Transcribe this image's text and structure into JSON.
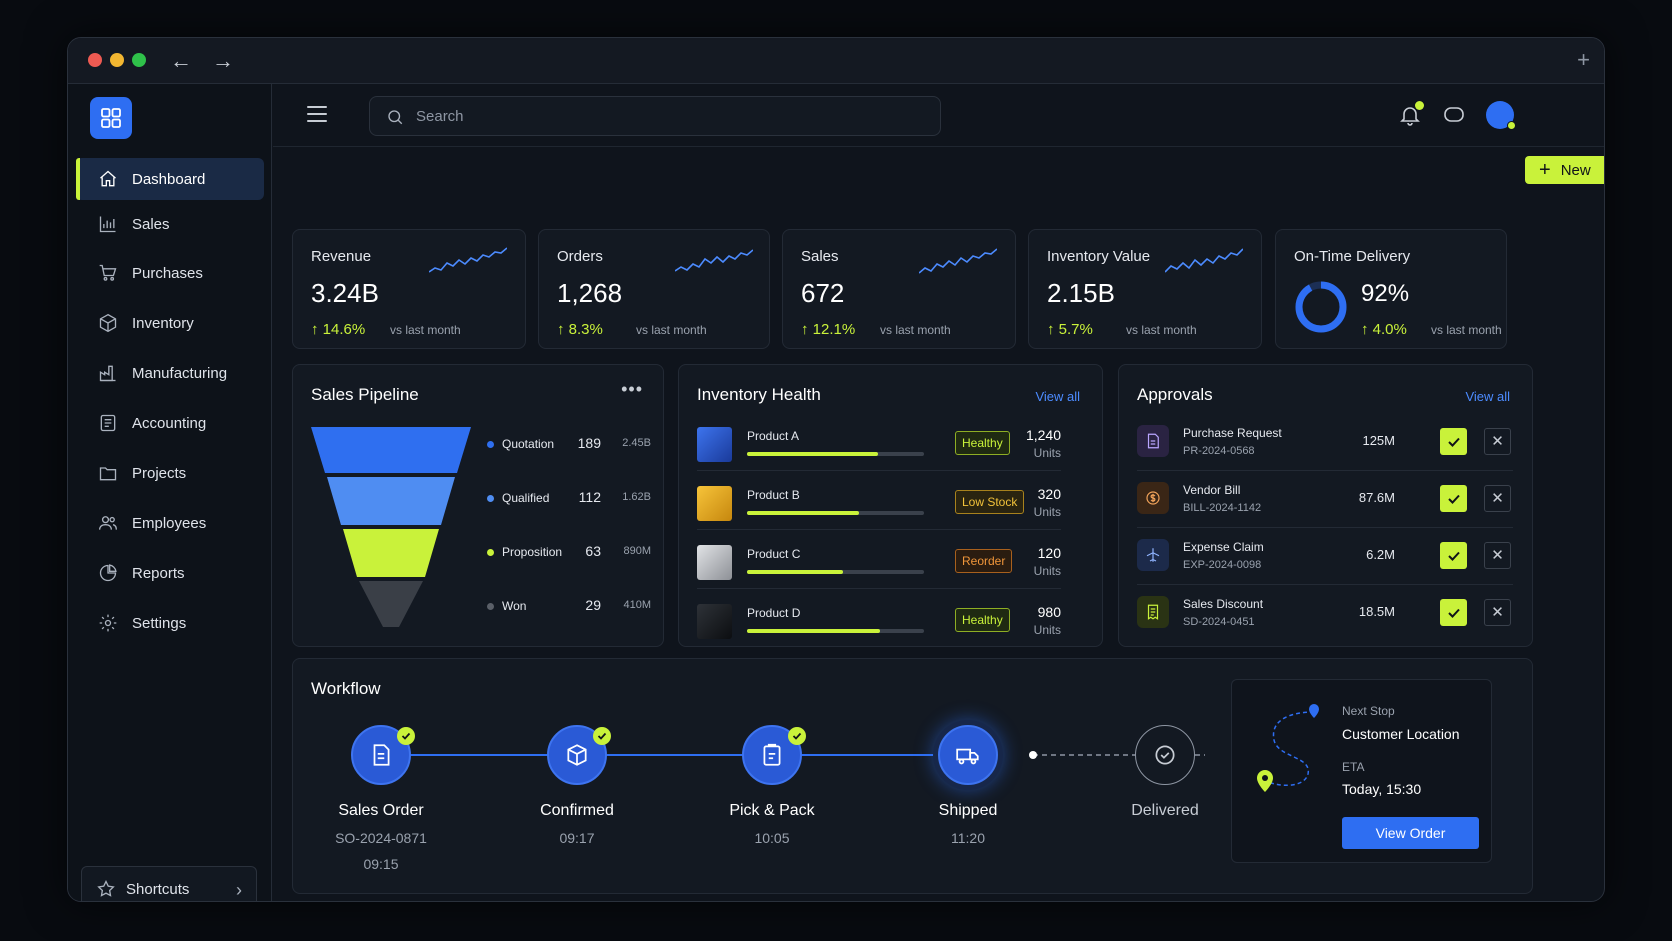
{
  "topbar": {
    "search_placeholder": "Search"
  },
  "actions": {
    "new_label": "New"
  },
  "sidebar": {
    "items": [
      {
        "label": "Dashboard",
        "icon": "home-icon",
        "active": true
      },
      {
        "label": "Sales",
        "icon": "bar-chart-icon"
      },
      {
        "label": "Purchases",
        "icon": "cart-icon"
      },
      {
        "label": "Inventory",
        "icon": "box-icon"
      },
      {
        "label": "Manufacturing",
        "icon": "factory-icon"
      },
      {
        "label": "Accounting",
        "icon": "ledger-icon"
      },
      {
        "label": "Projects",
        "icon": "folder-icon"
      },
      {
        "label": "Employees",
        "icon": "users-icon"
      },
      {
        "label": "Reports",
        "icon": "pie-chart-icon"
      },
      {
        "label": "Settings",
        "icon": "gear-icon"
      }
    ],
    "shortcuts_label": "Shortcuts"
  },
  "kpis": [
    {
      "title": "Revenue",
      "value": "3.24B",
      "delta": "14.6%",
      "vs": "vs last month"
    },
    {
      "title": "Orders",
      "value": "1,268",
      "delta": "8.3%",
      "vs": "vs last month"
    },
    {
      "title": "Sales",
      "value": "672",
      "delta": "12.1%",
      "vs": "vs last month"
    },
    {
      "title": "Inventory Value",
      "value": "2.15B",
      "delta": "5.7%",
      "vs": "vs last month"
    },
    {
      "title": "On-Time Delivery",
      "value": "92%",
      "delta": "4.0%",
      "vs": "vs last month",
      "ring_fraction": 0.92
    }
  ],
  "pipeline": {
    "title": "Sales Pipeline",
    "stages": [
      {
        "name": "Quotation",
        "count": "189",
        "amount": "2.45B",
        "color": "#2f6ff0"
      },
      {
        "name": "Qualified",
        "count": "112",
        "amount": "1.62B",
        "color": "#4f8df2"
      },
      {
        "name": "Proposition",
        "count": "63",
        "amount": "890M",
        "color": "#c9f23a"
      },
      {
        "name": "Won",
        "count": "29",
        "amount": "410M",
        "color": "#4a4f57"
      }
    ]
  },
  "inventory": {
    "title": "Inventory Health",
    "view_all": "View all",
    "items": [
      {
        "name": "Product A",
        "status": "Healthy",
        "qty": "1,240",
        "unit": "Units",
        "level": 0.74,
        "thumb": "#2a5ad6"
      },
      {
        "name": "Product B",
        "status": "Low Stock",
        "qty": "320",
        "unit": "Units",
        "level": 0.63,
        "thumb": "#f0b21d"
      },
      {
        "name": "Product C",
        "status": "Reorder",
        "qty": "120",
        "unit": "Units",
        "level": 0.54,
        "thumb": "#c9ccd1"
      },
      {
        "name": "Product D",
        "status": "Healthy",
        "qty": "980",
        "unit": "Units",
        "level": 0.75,
        "thumb": "#1b1e23"
      }
    ]
  },
  "approvals": {
    "title": "Approvals",
    "view_all": "View all",
    "items": [
      {
        "name": "Purchase Request",
        "ref": "PR-2024-0568",
        "amount": "125M",
        "icon": "document-icon",
        "color": "#9a7ff0"
      },
      {
        "name": "Vendor Bill",
        "ref": "BILL-2024-1142",
        "amount": "87.6M",
        "icon": "dollar-icon",
        "color": "#e8944a"
      },
      {
        "name": "Expense Claim",
        "ref": "EXP-2024-0098",
        "amount": "6.2M",
        "icon": "plane-icon",
        "color": "#6b9cff"
      },
      {
        "name": "Sales Discount",
        "ref": "SD-2024-0451",
        "amount": "18.5M",
        "icon": "receipt-icon",
        "color": "#c9f23a"
      }
    ]
  },
  "workflow": {
    "title": "Workflow",
    "steps": [
      {
        "label": "Sales Order",
        "sub": "SO-2024-0871",
        "sub2": "09:15",
        "done": true
      },
      {
        "label": "Confirmed",
        "sub": "09:17",
        "done": true
      },
      {
        "label": "Pick & Pack",
        "sub": "10:05",
        "done": true
      },
      {
        "label": "Shipped",
        "sub": "11:20",
        "current": true
      },
      {
        "label": "Delivered",
        "sub": ""
      }
    ],
    "next_stop_label": "Next Stop",
    "next_stop_value": "Customer Location",
    "eta_label": "ETA",
    "eta_value": "Today, 15:30",
    "view_order": "View Order"
  }
}
